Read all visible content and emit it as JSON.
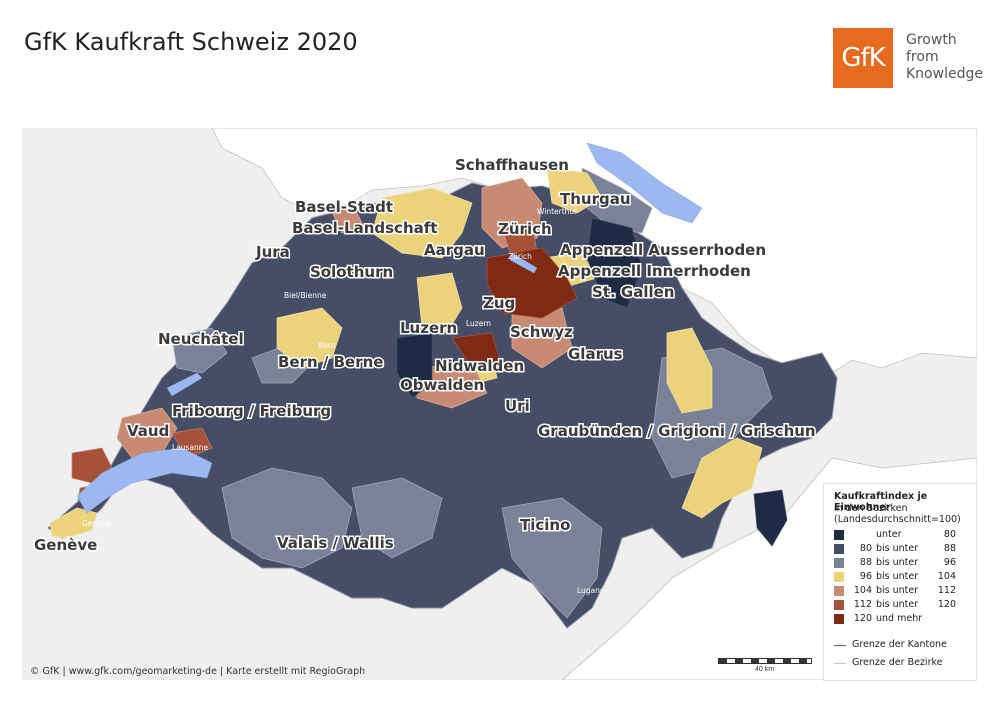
{
  "title": "GfK Kaufkraft Schweiz 2020",
  "logo": {
    "text": "GfK",
    "tagline_lines": [
      "Growth",
      "from",
      "Knowledge"
    ],
    "color": "#e86a1e"
  },
  "colors": {
    "c1": "#1f2a44",
    "c2": "#454e66",
    "c3": "#7a8297",
    "c4": "#ecd27a",
    "c5": "#c98a74",
    "c6": "#a6513a",
    "c7": "#7e2a14",
    "lake": "#9db8f0",
    "background": "#efefef",
    "neighbour": "#ffffff"
  },
  "cantons": [
    "Schaffhausen",
    "Thurgau",
    "Basel-Stadt",
    "Basel-Landschaft",
    "Zürich",
    "Appenzell Ausserrhoden",
    "Appenzell Innerrhoden",
    "St. Gallen",
    "Jura",
    "Aargau",
    "Solothurn",
    "Zug",
    "Luzern",
    "Schwyz",
    "Neuchâtel",
    "Glarus",
    "Bern / Berne",
    "Nidwalden",
    "Obwalden",
    "Fribourg / Freiburg",
    "Uri",
    "Vaud",
    "Graubünden / Grigioni / Grischun",
    "Ticino",
    "Valais / Wallis",
    "Genève"
  ],
  "cities": [
    "Basel",
    "Winterthur",
    "St. Gallen",
    "Zürich",
    "Biel/Bienne",
    "Luzern",
    "Bern",
    "Lausanne",
    "Genève",
    "Lugano"
  ],
  "legend": {
    "title": "Kaufkraftindex je Einwohner",
    "subtitle_lines": [
      "in den Bezirken",
      "(Landesdurchschnitt=100)"
    ],
    "classes": [
      {
        "a": "",
        "b": "unter",
        "c": "80"
      },
      {
        "a": "80",
        "b": "bis unter",
        "c": "88"
      },
      {
        "a": "88",
        "b": "bis unter",
        "c": "96"
      },
      {
        "a": "96",
        "b": "bis unter",
        "c": "104"
      },
      {
        "a": "104",
        "b": "bis unter",
        "c": "112"
      },
      {
        "a": "112",
        "b": "bis unter",
        "c": "120"
      },
      {
        "a": "120",
        "b": "und mehr",
        "c": ""
      }
    ],
    "boundaries": [
      "Grenze der Kantone",
      "Grenze der Bezirke"
    ]
  },
  "scale_label": "40 km",
  "footer": "© GfK | www.gfk.com/geomarketing-de | Karte erstellt mit RegioGraph"
}
